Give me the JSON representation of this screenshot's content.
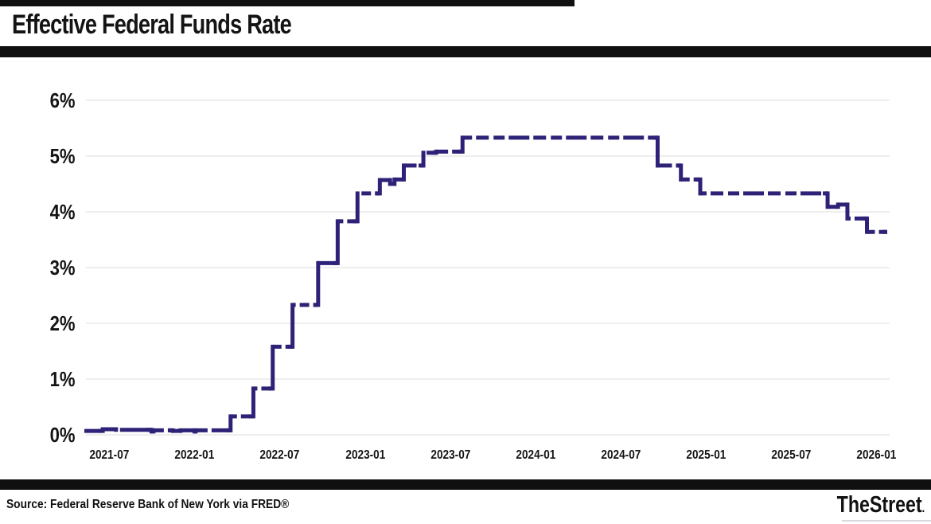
{
  "header": {
    "title": "Effective Federal Funds Rate"
  },
  "footer": {
    "source": "Source: Federal Reserve Bank of New York via FRED®",
    "brand": "TheStreet",
    "brand_suffix": "."
  },
  "chart_data": {
    "type": "line",
    "subtype": "step",
    "title": "Effective Federal Funds Rate",
    "xlabel": "",
    "ylabel": "",
    "ylim": [
      0,
      6
    ],
    "grid": true,
    "legend_position": "none",
    "line_color": "#2d2277",
    "grid_color": "#e3e3e3",
    "line_style": "dashed-step",
    "y_ticks": [
      {
        "label": "0%",
        "value": 0
      },
      {
        "label": "1%",
        "value": 1
      },
      {
        "label": "2%",
        "value": 2
      },
      {
        "label": "3%",
        "value": 3
      },
      {
        "label": "4%",
        "value": 4
      },
      {
        "label": "5%",
        "value": 5
      },
      {
        "label": "6%",
        "value": 6
      }
    ],
    "x_ticks": [
      "2021-07",
      "2022-01",
      "2022-07",
      "2023-01",
      "2023-07",
      "2024-01",
      "2024-07",
      "2025-01",
      "2025-07",
      "2026-01"
    ],
    "x_domain": [
      "2021-05-08",
      "2026-01-24"
    ],
    "series": [
      {
        "name": "Effective Federal Funds Rate",
        "unit": "percent",
        "points": [
          [
            "2021-05-08",
            0.07
          ],
          [
            "2021-06-17",
            0.1
          ],
          [
            "2021-07-15",
            0.09
          ],
          [
            "2021-09-30",
            0.06
          ],
          [
            "2021-10-04",
            0.08
          ],
          [
            "2021-11-15",
            0.07
          ],
          [
            "2021-12-01",
            0.08
          ],
          [
            "2021-12-31",
            0.06
          ],
          [
            "2022-01-03",
            0.08
          ],
          [
            "2022-03-17",
            0.33
          ],
          [
            "2022-05-05",
            0.83
          ],
          [
            "2022-06-16",
            1.58
          ],
          [
            "2022-07-28",
            2.33
          ],
          [
            "2022-09-22",
            3.08
          ],
          [
            "2022-11-03",
            3.83
          ],
          [
            "2022-12-15",
            4.33
          ],
          [
            "2023-02-02",
            4.57
          ],
          [
            "2023-02-24",
            4.5
          ],
          [
            "2023-03-03",
            4.58
          ],
          [
            "2023-03-23",
            4.83
          ],
          [
            "2023-05-04",
            5.06
          ],
          [
            "2023-06-01",
            5.08
          ],
          [
            "2023-07-27",
            5.33
          ],
          [
            "2024-09-19",
            4.83
          ],
          [
            "2024-11-08",
            4.58
          ],
          [
            "2024-12-19",
            4.33
          ],
          [
            "2025-09-18",
            4.09
          ],
          [
            "2025-10-10",
            4.13
          ],
          [
            "2025-10-30",
            3.88
          ],
          [
            "2025-12-11",
            3.64
          ],
          [
            "2026-01-24",
            3.64
          ]
        ]
      }
    ]
  }
}
